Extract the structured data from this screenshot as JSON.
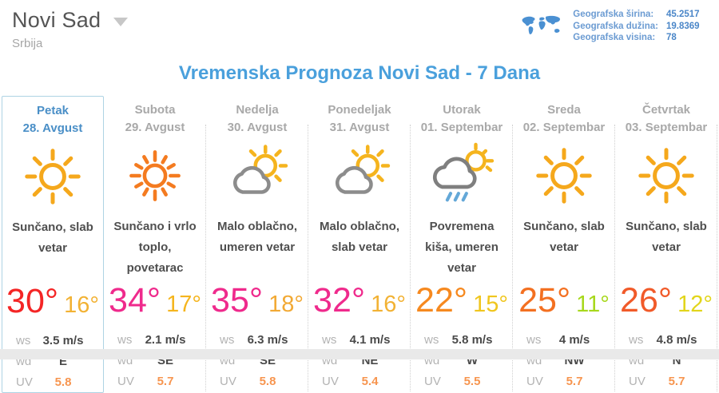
{
  "header": {
    "city": "Novi Sad",
    "country": "Srbija",
    "geo": {
      "rows": [
        {
          "label": "Geografska širina:",
          "value": "45.2517"
        },
        {
          "label": "Geografska dužina:",
          "value": "19.8369"
        },
        {
          "label": "Geografska visina:",
          "value": "78"
        }
      ]
    }
  },
  "title": "Vremenska Prognoza Novi Sad - 7 Dana",
  "detail_labels": {
    "ws": "ws",
    "wd": "wd",
    "uv": "UV"
  },
  "colors": {
    "accent_blue": "#4aa0dc",
    "selected_border": "#aed3e4",
    "selected_text": "#4a8fc7",
    "muted_gray": "#a9a9a9",
    "uv_orange": "#f7954f",
    "sun_yellow": "#f5a81c",
    "hot_sun_orange": "#f47b20",
    "cloud_gray": "#8c8c8c",
    "rain_blue": "#64a8d8",
    "map_blue": "#4a90d2"
  },
  "days": [
    {
      "name": "Petak",
      "date": "28. Avgust",
      "icon": "sun-icon",
      "desc": "Sunčano, slab vetar",
      "high": "30°",
      "high_color": "#f42525",
      "low": "16°",
      "low_color": "#f2b234",
      "ws": "3.5 m/s",
      "wd": "E",
      "uv": "5.8",
      "selected": true
    },
    {
      "name": "Subota",
      "date": "29. Avgust",
      "icon": "hot-sun-icon",
      "desc": "Sunčano i vrlo toplo, povetarac",
      "high": "34°",
      "high_color": "#ef2a8c",
      "low": "17°",
      "low_color": "#f5b51e",
      "ws": "2.1 m/s",
      "wd": "SE",
      "uv": "5.7",
      "selected": false
    },
    {
      "name": "Nedelja",
      "date": "30. Avgust",
      "icon": "partly-cloudy-icon",
      "desc": "Malo oblačno, umeren vetar",
      "high": "35°",
      "high_color": "#ef2a8c",
      "low": "18°",
      "low_color": "#f2a934",
      "ws": "6.3 m/s",
      "wd": "SE",
      "uv": "5.8",
      "selected": false
    },
    {
      "name": "Ponedeljak",
      "date": "31. Avgust",
      "icon": "partly-cloudy-icon",
      "desc": "Malo oblačno, slab vetar",
      "high": "32°",
      "high_color": "#ef2a8c",
      "low": "16°",
      "low_color": "#f2b234",
      "ws": "4.1 m/s",
      "wd": "NE",
      "uv": "5.4",
      "selected": false
    },
    {
      "name": "Utorak",
      "date": "01. Septembar",
      "icon": "rain-icon",
      "desc": "Povremena kiša, umeren vetar",
      "high": "22°",
      "high_color": "#f6891f",
      "low": "15°",
      "low_color": "#f0c61e",
      "ws": "5.8 m/s",
      "wd": "W",
      "uv": "5.5",
      "selected": false
    },
    {
      "name": "Sreda",
      "date": "02. Septembar",
      "icon": "sun-icon",
      "desc": "Sunčano, slab vetar",
      "high": "25°",
      "high_color": "#f37021",
      "low": "11°",
      "low_color": "#a7d81c",
      "ws": "4 m/s",
      "wd": "NW",
      "uv": "5.7",
      "selected": false
    },
    {
      "name": "Četvrtak",
      "date": "03. Septembar",
      "icon": "sun-icon",
      "desc": "Sunčano, slab vetar",
      "high": "26°",
      "high_color": "#f15a29",
      "low": "12°",
      "low_color": "#e2d51b",
      "ws": "4.8 m/s",
      "wd": "N",
      "uv": "5.7",
      "selected": false
    }
  ]
}
